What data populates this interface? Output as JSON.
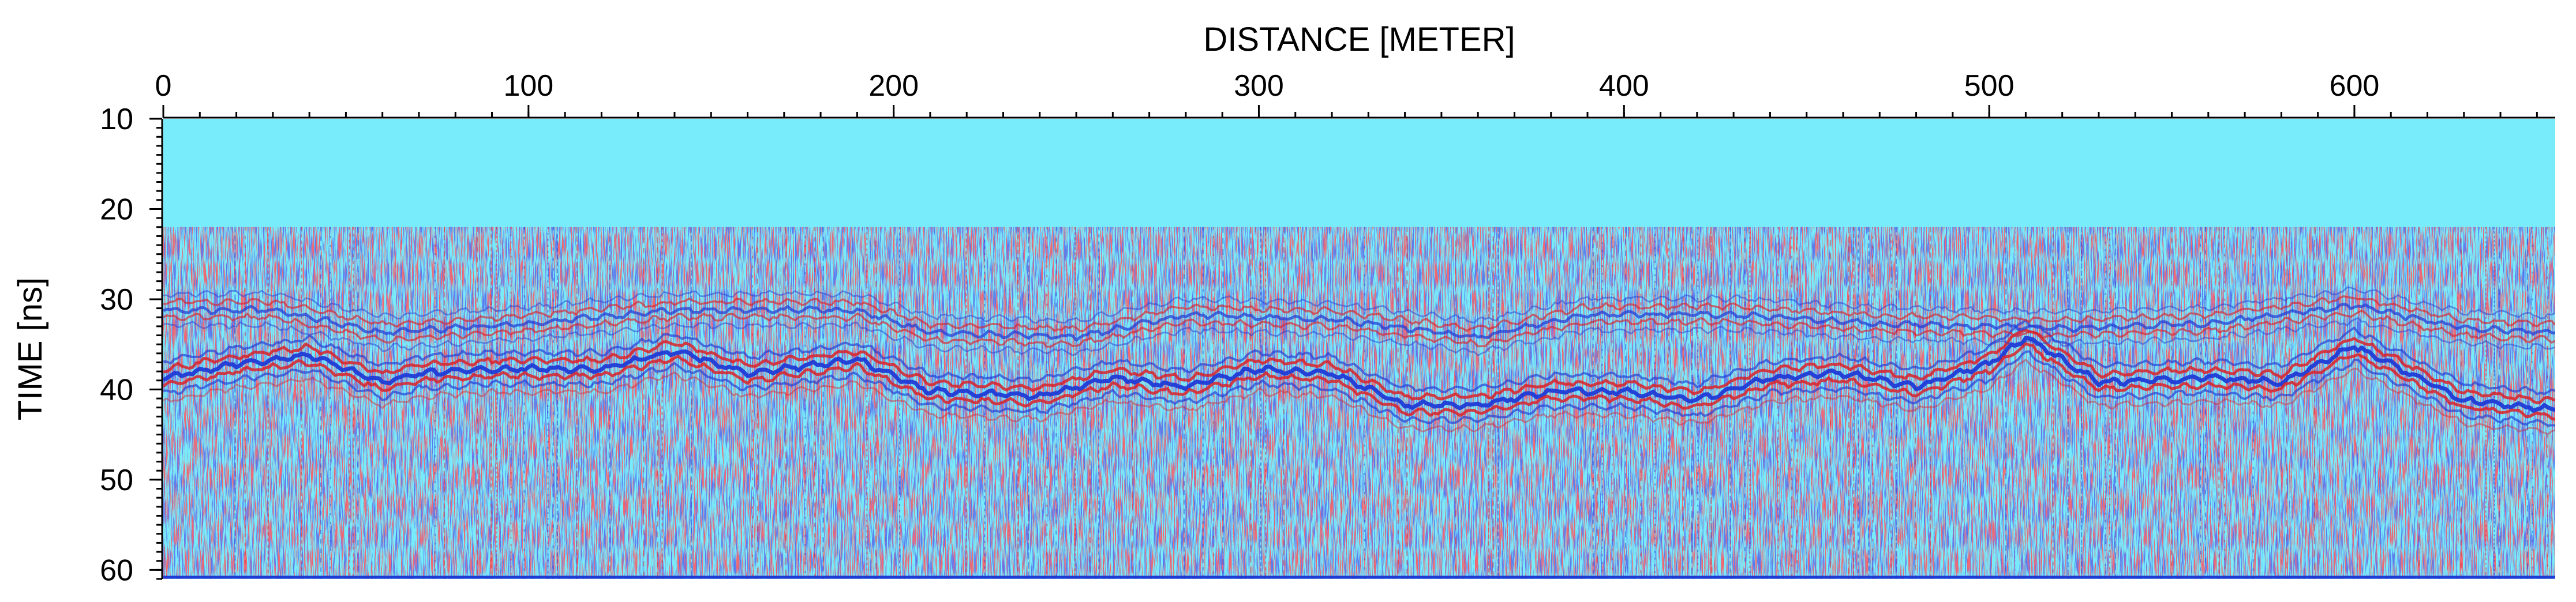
{
  "chart_data": {
    "type": "heatmap",
    "title": "",
    "xlabel": "DISTANCE [METER]",
    "ylabel": "TIME [ns]",
    "xlim": [
      0,
      655
    ],
    "ylim": [
      10,
      61
    ],
    "x_ticks": [
      0,
      100,
      200,
      300,
      400,
      500,
      600
    ],
    "y_ticks": [
      10,
      20,
      30,
      40,
      50,
      60
    ],
    "x_tick_labels": [
      "0",
      "100",
      "200",
      "300",
      "400",
      "500",
      "600"
    ],
    "y_tick_labels": [
      "10",
      "20",
      "30",
      "40",
      "50",
      "60"
    ],
    "x_minor_step": 10,
    "y_minor_step": 1,
    "blank_band_time": [
      10,
      22
    ],
    "grid": false,
    "colors": {
      "background": "#79ecfb",
      "positive": "#d8232a",
      "negative": "#1f3bd6"
    },
    "series": [
      {
        "distance": [
          0,
          20,
          40,
          60,
          70,
          90,
          120,
          140,
          160,
          190,
          210,
          240,
          260,
          280,
          300,
          320,
          340,
          360,
          380,
          400,
          420,
          440,
          460,
          480,
          500,
          510,
          530,
          560,
          580,
          600,
          630,
          655
        ],
        "time_ns": [
          38.5,
          37.0,
          36.0,
          39.0,
          38.0,
          37.5,
          37.5,
          35.5,
          38.0,
          36.5,
          40.0,
          40.5,
          38.5,
          39.5,
          37.5,
          38.0,
          41.5,
          41.5,
          40.0,
          40.0,
          41.0,
          38.5,
          38.0,
          39.5,
          37.0,
          34.0,
          39.0,
          38.5,
          39.0,
          35.0,
          41.0,
          42.0
        ]
      },
      {
        "distance": [
          0,
          30,
          60,
          100,
          140,
          190,
          210,
          250,
          280,
          320,
          360,
          390,
          430,
          470,
          520,
          560,
          600,
          630,
          655
        ],
        "time_ns": [
          31.0,
          31.0,
          33.5,
          32.5,
          31.0,
          31.0,
          33.5,
          34.0,
          31.5,
          32.0,
          34.0,
          31.5,
          31.5,
          32.5,
          33.0,
          32.5,
          30.5,
          33.0,
          33.5
        ]
      }
    ]
  }
}
